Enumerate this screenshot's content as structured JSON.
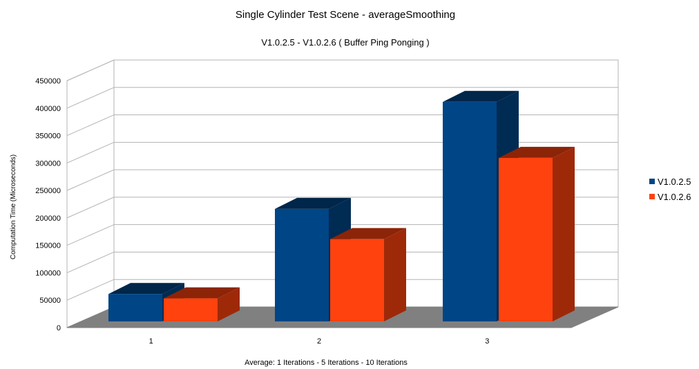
{
  "chart_data": {
    "type": "bar",
    "title": "Single Cylinder Test Scene - averageSmoothing",
    "subtitle": "V1.0.2.5 - V1.0.2.6 ( Buffer Ping Ponging )",
    "xlabel": "Average: 1 Iterations - 5 Iterations - 10 Iterations",
    "ylabel": "Computation Time (Microseconds)",
    "ylim": [
      0,
      450000
    ],
    "yticks": [
      "0",
      "50000",
      "100000",
      "150000",
      "200000",
      "250000",
      "300000",
      "350000",
      "400000",
      "450000"
    ],
    "categories": [
      "1",
      "2",
      "3"
    ],
    "series": [
      {
        "name": "V1.0.2.5",
        "color": "#004586",
        "values": [
          50000,
          205000,
          400000
        ]
      },
      {
        "name": "V1.0.2.6",
        "color": "#ff420e",
        "values": [
          42000,
          150000,
          298000
        ]
      }
    ],
    "grid": true,
    "legend_position": "right",
    "style": "3d"
  }
}
